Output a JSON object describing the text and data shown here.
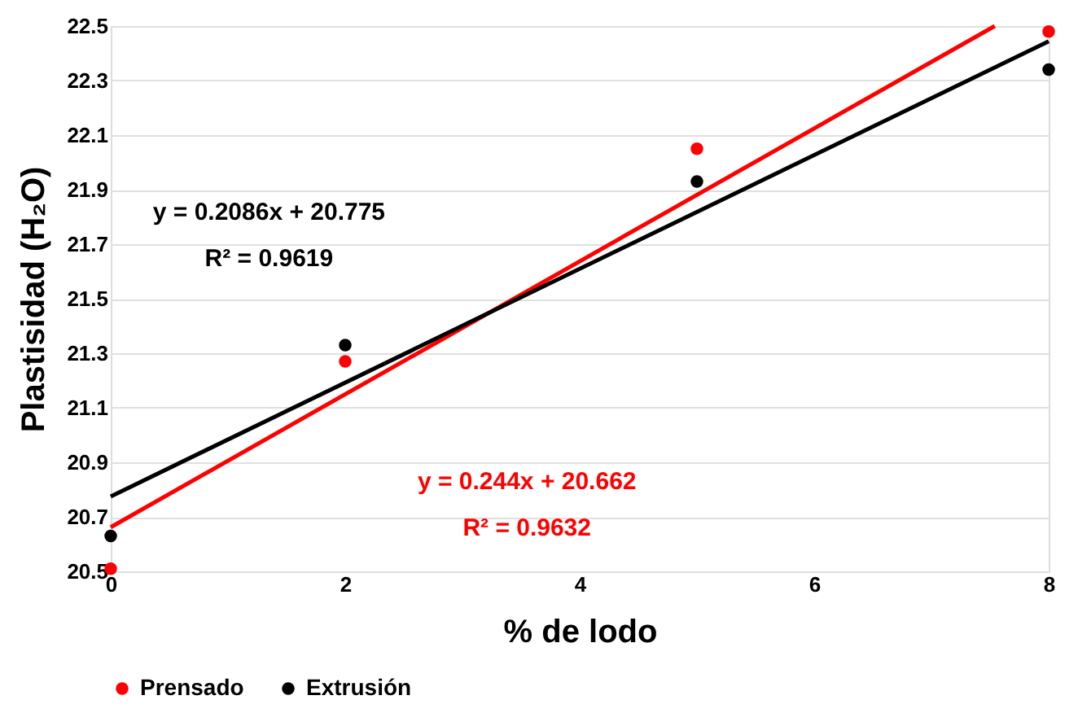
{
  "chart_data": {
    "type": "scatter",
    "xlabel": "% de lodo",
    "ylabel": "Plastisidad (H₂O)",
    "x": [
      0,
      2,
      5,
      8
    ],
    "series": [
      {
        "name": "Prensado",
        "color": "#ff0000",
        "values": [
          20.51,
          21.27,
          22.05,
          22.48
        ]
      },
      {
        "name": "Extrusión",
        "color": "#000000",
        "values": [
          20.63,
          21.33,
          21.93,
          22.34
        ]
      },
      {
        "type": "line",
        "marker": "none",
        "color": "#ff0000",
        "x": [
          0,
          7.54
        ],
        "values": [
          20.662,
          22.5
        ]
      },
      {
        "type": "line",
        "marker": "none",
        "color": "#000000",
        "x": [
          0,
          8
        ],
        "values": [
          20.775,
          22.444
        ]
      }
    ],
    "annotations": [
      "y = 0.2086x + 20.775",
      "R² = 0.9619",
      "y = 0.244x + 20.662",
      "R² = 0.9632"
    ],
    "xlim": [
      0,
      8
    ],
    "xticks": [
      0,
      2,
      4,
      6,
      8
    ],
    "ylim": [
      20.5,
      22.5
    ],
    "yticks": [
      20.5,
      20.7,
      20.9,
      21.1,
      21.3,
      21.5,
      21.7,
      21.9,
      22.1,
      22.3,
      22.5
    ],
    "grid": "y",
    "legend": "bottom",
    "marker": "circle",
    "line_style": "solid"
  }
}
